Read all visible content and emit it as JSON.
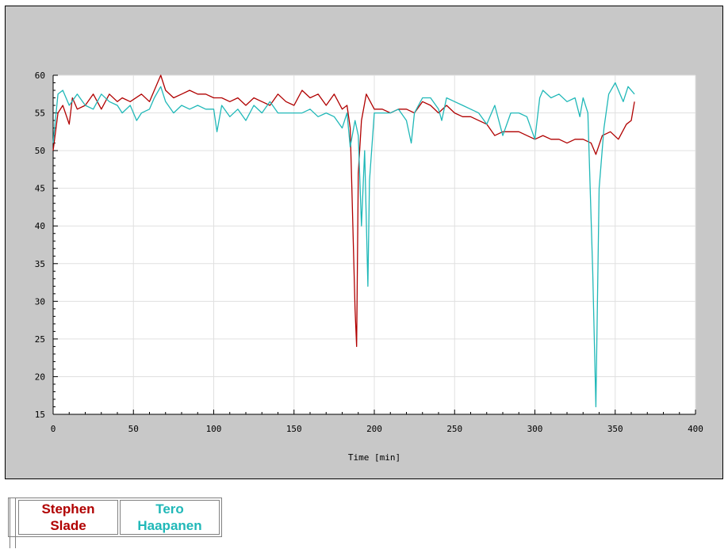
{
  "chart_data": {
    "type": "line",
    "title": "",
    "xlabel": "Time [min]",
    "ylabel": "",
    "xlim": [
      0,
      400
    ],
    "ylim": [
      15,
      60
    ],
    "xticks": [
      0,
      50,
      100,
      150,
      200,
      250,
      300,
      350,
      400
    ],
    "yticks": [
      15,
      20,
      25,
      30,
      35,
      40,
      45,
      50,
      55,
      60
    ],
    "grid": true,
    "legend_position": "below",
    "plot_background": "#ffffff",
    "frame_background": "#c8c8c8",
    "series": [
      {
        "name": "Stephen Slade",
        "color": "#b00000",
        "x": [
          0,
          3,
          6,
          10,
          12,
          15,
          20,
          25,
          30,
          35,
          40,
          43,
          48,
          55,
          60,
          63,
          67,
          70,
          75,
          80,
          85,
          90,
          95,
          100,
          105,
          110,
          115,
          120,
          125,
          130,
          135,
          140,
          145,
          150,
          155,
          160,
          165,
          170,
          175,
          180,
          183,
          185,
          186,
          187,
          188,
          189,
          190,
          192,
          195,
          200,
          205,
          210,
          215,
          220,
          225,
          230,
          235,
          240,
          245,
          250,
          255,
          260,
          265,
          270,
          275,
          280,
          285,
          290,
          295,
          300,
          305,
          310,
          315,
          320,
          325,
          330,
          335,
          338,
          342,
          347,
          352,
          357,
          360,
          362
        ],
        "y": [
          50,
          55,
          56,
          53.5,
          57,
          55.5,
          56,
          57.5,
          55.5,
          57.5,
          56.5,
          57,
          56.5,
          57.5,
          56.5,
          58,
          60,
          58,
          57,
          57.5,
          58,
          57.5,
          57.5,
          57,
          57,
          56.5,
          57,
          56,
          57,
          56.5,
          56,
          57.5,
          56.5,
          56,
          58,
          57,
          57.5,
          56,
          57.5,
          55.5,
          56,
          53,
          45,
          37,
          29,
          24,
          47,
          54,
          57.5,
          55.5,
          55.5,
          55,
          55.5,
          55.5,
          55,
          56.5,
          56,
          55,
          56,
          55,
          54.5,
          54.5,
          54,
          53.5,
          52,
          52.5,
          52.5,
          52.5,
          52,
          51.5,
          52,
          51.5,
          51.5,
          51,
          51.5,
          51.5,
          51,
          49.5,
          52,
          52.5,
          51.5,
          53.5,
          54,
          56.5
        ]
      },
      {
        "name": "Tero Haapanen",
        "color": "#20b8b8",
        "x": [
          0,
          3,
          6,
          10,
          15,
          20,
          25,
          30,
          35,
          40,
          43,
          48,
          52,
          55,
          60,
          63,
          67,
          70,
          75,
          80,
          85,
          90,
          95,
          100,
          102,
          105,
          110,
          115,
          120,
          125,
          130,
          135,
          140,
          145,
          150,
          155,
          160,
          165,
          170,
          175,
          180,
          183,
          185,
          188,
          190,
          192,
          194,
          196,
          197,
          200,
          205,
          210,
          215,
          220,
          223,
          225,
          230,
          235,
          240,
          242,
          245,
          250,
          255,
          260,
          265,
          270,
          275,
          280,
          285,
          290,
          295,
          300,
          303,
          305,
          310,
          315,
          320,
          325,
          328,
          330,
          333,
          336,
          338,
          340,
          343,
          346,
          350,
          355,
          358,
          362
        ],
        "y": [
          51,
          57.5,
          58,
          56,
          57.5,
          56,
          55.5,
          57.5,
          56.5,
          56,
          55,
          56,
          54,
          55,
          55.5,
          57,
          58.5,
          56.5,
          55,
          56,
          55.5,
          56,
          55.5,
          55.5,
          52.5,
          56,
          54.5,
          55.5,
          54,
          56,
          55,
          56.5,
          55,
          55,
          55,
          55,
          55.5,
          54.5,
          55,
          54.5,
          53,
          55,
          50.5,
          54,
          52,
          40,
          50,
          32,
          46,
          55,
          55,
          55,
          55.5,
          54,
          51,
          55,
          57,
          57,
          55.5,
          54,
          57,
          56.5,
          56,
          55.5,
          55,
          53.5,
          56,
          52,
          55,
          55,
          54.5,
          51.5,
          57,
          58,
          57,
          57.5,
          56.5,
          57,
          54.5,
          57,
          55,
          34,
          16,
          45,
          53,
          57.5,
          59,
          56.5,
          58.5,
          57.5
        ]
      }
    ]
  },
  "legend": {
    "entries": [
      {
        "line1": "Stephen",
        "line2": "Slade",
        "color": "#b00000"
      },
      {
        "line1": "Tero",
        "line2": "Haapanen",
        "color": "#20b8b8"
      }
    ]
  }
}
